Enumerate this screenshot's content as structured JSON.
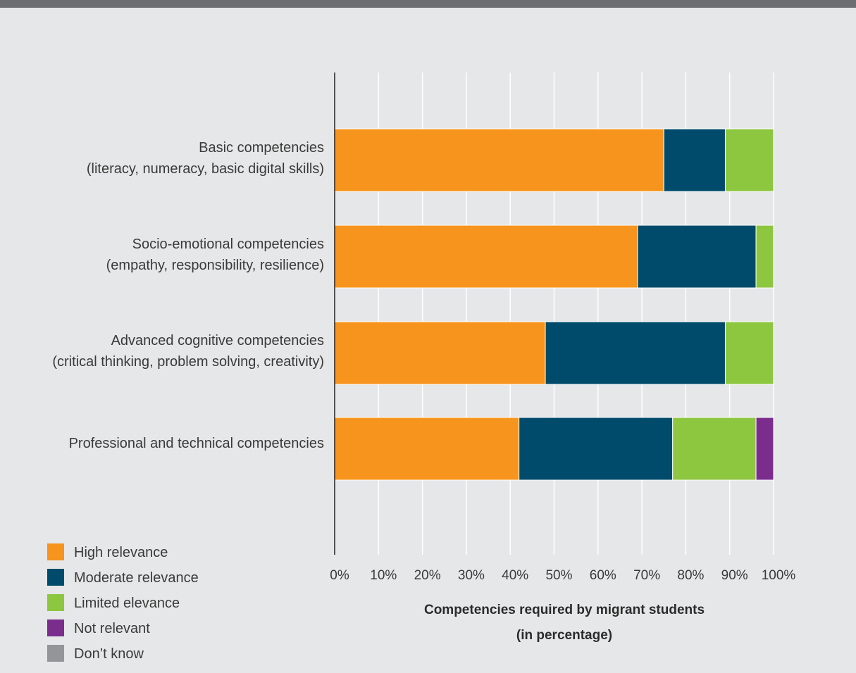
{
  "chart_data": {
    "type": "bar",
    "orientation": "horizontal",
    "stacked": true,
    "categories": [
      [
        "Basic competencies",
        "(literacy, numeracy, basic digital skills)"
      ],
      [
        "Socio-emotional competencies",
        "(empathy, responsibility, resilience)"
      ],
      [
        "Advanced cognitive competencies",
        "(critical thinking, problem solving, creativity)"
      ],
      [
        "Professional and technical competencies"
      ]
    ],
    "series": [
      {
        "name": "High relevance",
        "color": "#f7941d",
        "values": [
          75,
          69,
          48,
          42
        ]
      },
      {
        "name": "Moderate relevance",
        "color": "#004b6b",
        "values": [
          14,
          27,
          41,
          35
        ]
      },
      {
        "name": "Limited elevance",
        "color": "#8dc63f",
        "values": [
          11,
          4,
          11,
          19
        ]
      },
      {
        "name": "Not relevant",
        "color": "#7b2d8e",
        "values": [
          0,
          0,
          0,
          4
        ]
      },
      {
        "name": "Don’t know",
        "color": "#939598",
        "values": [
          0,
          0,
          0,
          0
        ]
      }
    ],
    "xlim": [
      0,
      100
    ],
    "xticks": [
      "0%",
      "10%",
      "20%",
      "30%",
      "40%",
      "50%",
      "60%",
      "70%",
      "80%",
      "90%",
      "100%"
    ],
    "xlabel": [
      "Competencies required by migrant students",
      "(in percentage)"
    ],
    "grid": true,
    "legend_position": "bottom-left"
  }
}
